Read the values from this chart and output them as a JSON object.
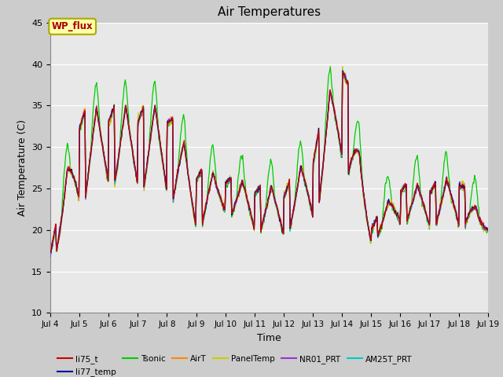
{
  "title": "Air Temperatures",
  "xlabel": "Time",
  "ylabel": "Air Temperature (C)",
  "ylim": [
    10,
    45
  ],
  "xlim_days": [
    4,
    19
  ],
  "annotation_text": "WP_flux",
  "annotation_color": "#aa0000",
  "annotation_bg": "#ffffaa",
  "annotation_border": "#aaaa00",
  "series_colors": {
    "li75_t": "#cc0000",
    "li77_temp": "#000099",
    "Tsonic": "#00cc00",
    "AirT": "#ff8800",
    "PanelTemp": "#cccc00",
    "NR01_PRT": "#9933cc",
    "AM25T_PRT": "#00cccc"
  },
  "xtick_labels": [
    "Jul 4",
    "Jul 5",
    "Jul 6",
    "Jul 7",
    "Jul 8",
    "Jul 9",
    "Jul 10",
    "Jul 11",
    "Jul 12",
    "Jul 13",
    "Jul 14",
    "Jul 15",
    "Jul 16",
    "Jul 17",
    "Jul 18",
    "Jul 19"
  ],
  "ytick_values": [
    10,
    15,
    20,
    25,
    30,
    35,
    40,
    45
  ],
  "legend_labels": [
    "li75_t",
    "li77_temp",
    "Tsonic",
    "AirT",
    "PanelTemp",
    "NR01_PRT",
    "AM25T_PRT"
  ]
}
